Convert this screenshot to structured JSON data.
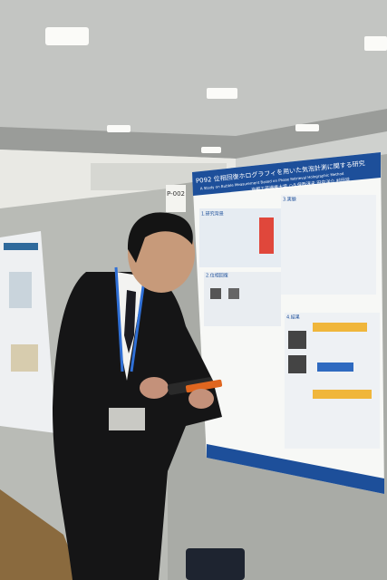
{
  "poster_number": "P-002",
  "poster": {
    "title": "P092 位相回復ホログラフィを用いた気泡計測に関する研究",
    "subtitle": "A Study on Bubble Measurement Based on Phase Retrieval Holographic Method",
    "authors": "京都工芸繊維大学 ○久保西淳未 田中洋介 村田滋",
    "sections": [
      "1.研究背景",
      "3.実験",
      "2.位相回復",
      "4.結果"
    ]
  }
}
